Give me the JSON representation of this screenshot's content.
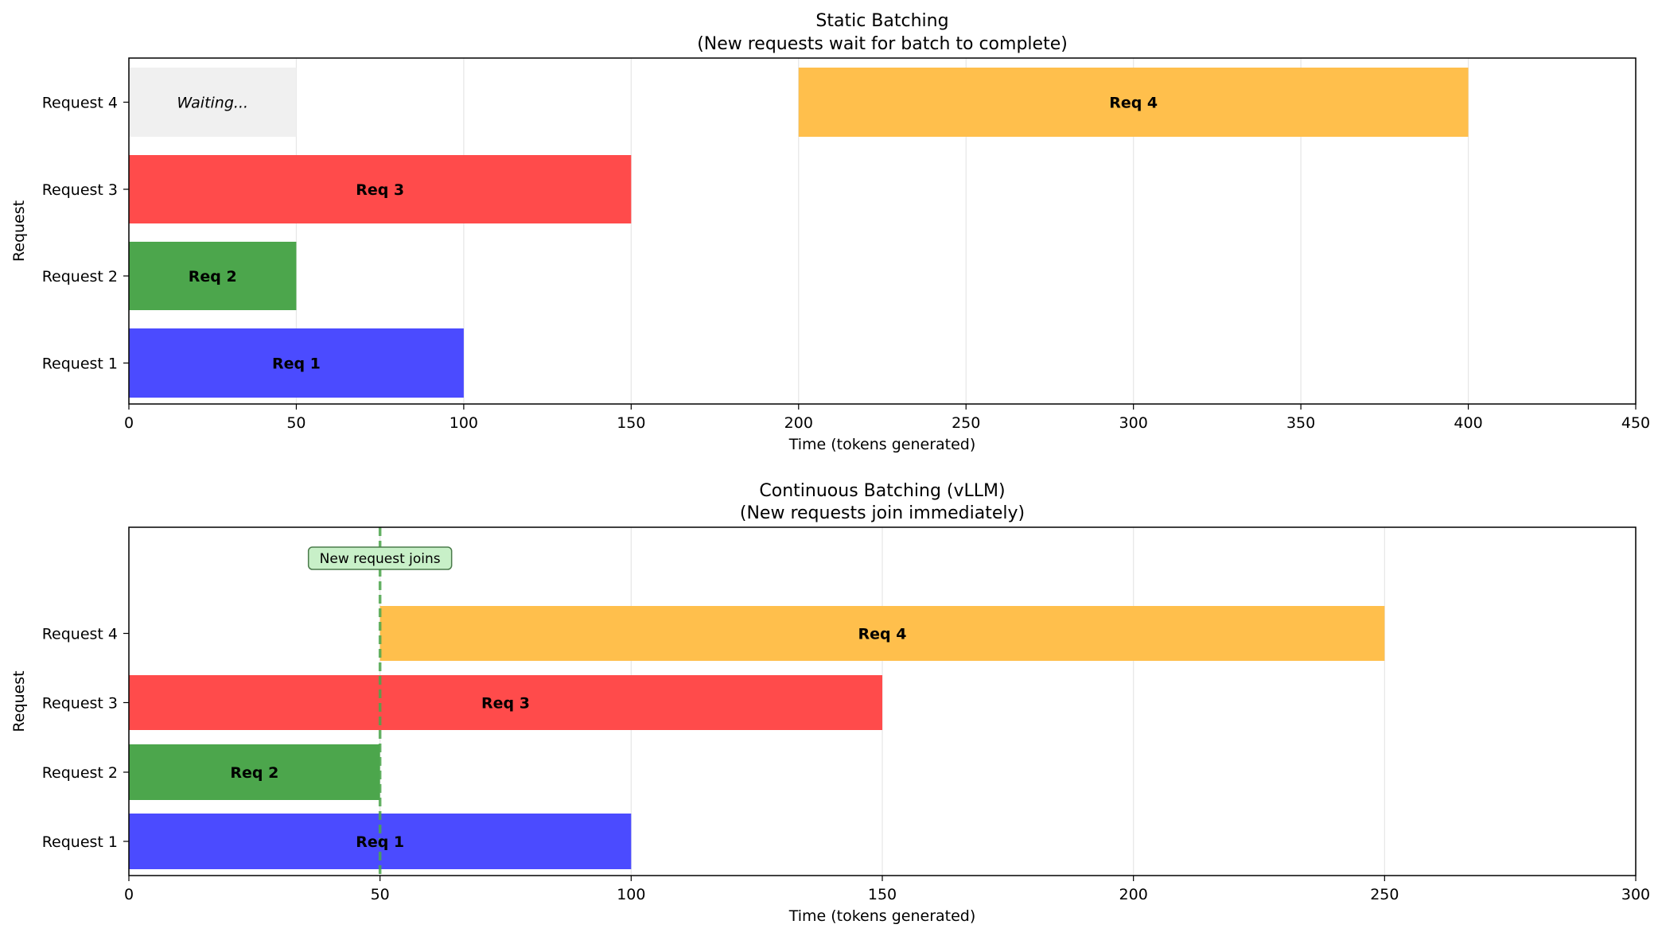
{
  "chart_data": [
    {
      "type": "bar",
      "orientation": "horizontal",
      "title": "Static Batching",
      "subtitle": "(New requests wait for batch to complete)",
      "xlabel": "Time (tokens generated)",
      "ylabel": "Request",
      "xlim": [
        0,
        450
      ],
      "xticks": [
        0,
        50,
        100,
        150,
        200,
        250,
        300,
        350,
        400,
        450
      ],
      "categories": [
        "Request 1",
        "Request 2",
        "Request 3",
        "Request 4"
      ],
      "grid": "vertical",
      "bars": [
        {
          "request": "Request 1",
          "start": 0,
          "end": 100,
          "label": "Req 1",
          "color": "#4b4bff"
        },
        {
          "request": "Request 2",
          "start": 0,
          "end": 50,
          "label": "Req 2",
          "color": "#4ca64c"
        },
        {
          "request": "Request 3",
          "start": 0,
          "end": 150,
          "label": "Req 3",
          "color": "#ff4b4b"
        },
        {
          "request": "Request 4",
          "start": 200,
          "end": 400,
          "label": "Req 4",
          "color": "#ffbf4c"
        }
      ],
      "waiting": {
        "request": "Request 4",
        "start": 0,
        "end": 50,
        "label": "Waiting...",
        "color": "#f0f0f0"
      }
    },
    {
      "type": "bar",
      "orientation": "horizontal",
      "title": "Continuous Batching (vLLM)",
      "subtitle": "(New requests join immediately)",
      "xlabel": "Time (tokens generated)",
      "ylabel": "Request",
      "xlim": [
        0,
        300
      ],
      "xticks": [
        0,
        50,
        100,
        150,
        200,
        250,
        300
      ],
      "categories": [
        "Request 1",
        "Request 2",
        "Request 3",
        "Request 4"
      ],
      "grid": "vertical",
      "bars": [
        {
          "request": "Request 1",
          "start": 0,
          "end": 100,
          "label": "Req 1",
          "color": "#4b4bff"
        },
        {
          "request": "Request 2",
          "start": 0,
          "end": 50,
          "label": "Req 2",
          "color": "#4ca64c"
        },
        {
          "request": "Request 3",
          "start": 0,
          "end": 150,
          "label": "Req 3",
          "color": "#ff4b4b"
        },
        {
          "request": "Request 4",
          "start": 50,
          "end": 250,
          "label": "Req 4",
          "color": "#ffbf4c"
        }
      ],
      "vline": {
        "x": 50,
        "color": "#4ca64c",
        "style": "dashed"
      },
      "annotation": {
        "text": "New request joins",
        "x": 50,
        "box_color": "#c8f0c8",
        "edge_color": "#4a7a4a"
      }
    }
  ]
}
